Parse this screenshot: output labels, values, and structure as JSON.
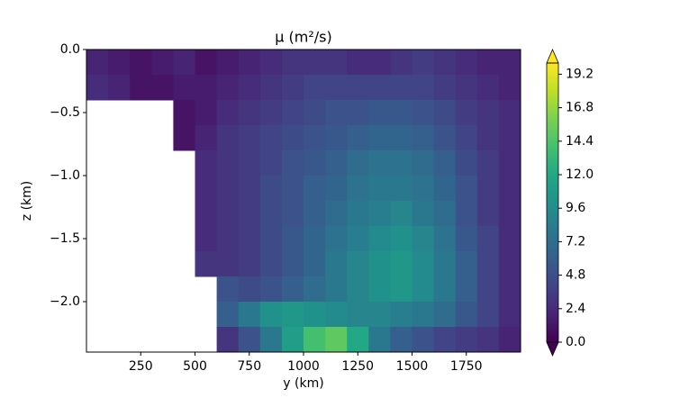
{
  "chart_data": {
    "type": "contourf",
    "title": "μ (m²/s)",
    "x_label": "y (km)",
    "y_label": "z (km)",
    "colormap": "viridis",
    "colorbar_extend": "both",
    "xlim": [
      0,
      2000
    ],
    "ylim": [
      -2.4,
      0
    ],
    "clim": [
      0,
      20
    ],
    "xticks": [
      250,
      500,
      750,
      1000,
      1250,
      1500,
      1750
    ],
    "yticks": [
      {
        "value": 0,
        "label": "0.0"
      },
      {
        "value": -0.5,
        "label": "−0.5"
      },
      {
        "value": -1,
        "label": "−1.0"
      },
      {
        "value": -1.5,
        "label": "−1.5"
      },
      {
        "value": -2,
        "label": "−2.0"
      }
    ],
    "cticks": [
      {
        "value": 0,
        "label": "0.0"
      },
      2.4,
      4.8,
      7.2,
      9.6,
      {
        "value": 12,
        "label": "12.0"
      },
      14.4,
      16.8,
      19.2
    ],
    "x": [
      50,
      150,
      250,
      350,
      450,
      550,
      650,
      750,
      850,
      950,
      1050,
      1150,
      1250,
      1350,
      1450,
      1550,
      1650,
      1750,
      1850,
      1950
    ],
    "y": [
      -0.1,
      -0.3,
      -0.5,
      -0.7,
      -0.9,
      -1.1,
      -1.3,
      -1.5,
      -1.7,
      -1.9,
      -2.1,
      -2.3
    ],
    "z": [
      [
        2,
        1.5,
        1,
        1.5,
        2,
        1,
        1.5,
        2,
        2.5,
        3,
        3,
        3,
        2.5,
        2.5,
        3,
        3.5,
        3,
        2.5,
        2,
        2
      ],
      [
        2.5,
        2,
        1,
        1,
        1.5,
        1.5,
        2,
        2.5,
        3,
        3.5,
        4,
        4,
        4,
        4,
        4,
        4,
        3.5,
        3,
        2.5,
        2
      ],
      [
        null,
        null,
        null,
        null,
        1,
        1.5,
        2.5,
        3,
        3.5,
        4,
        4.5,
        5,
        5,
        5.5,
        5.5,
        5,
        4.5,
        3.5,
        3,
        2.5
      ],
      [
        null,
        null,
        null,
        null,
        1,
        2,
        3,
        3.5,
        4,
        4.5,
        5,
        5.5,
        6,
        6.5,
        6.5,
        6,
        5,
        4,
        3,
        2.5
      ],
      [
        null,
        null,
        null,
        null,
        null,
        2.5,
        3,
        3.5,
        4,
        5,
        5.5,
        6,
        7,
        7.5,
        7.5,
        7,
        6,
        4.5,
        3.5,
        2.5
      ],
      [
        null,
        null,
        null,
        null,
        null,
        2.5,
        3,
        3.5,
        4.5,
        5,
        6,
        6.5,
        7.5,
        8,
        8,
        7.5,
        6.5,
        5,
        3.5,
        2.5
      ],
      [
        null,
        null,
        null,
        null,
        null,
        2.5,
        3,
        3.5,
        4.5,
        5,
        6,
        7,
        8,
        8.5,
        9,
        8,
        7,
        5,
        3.5,
        2.5
      ],
      [
        null,
        null,
        null,
        null,
        null,
        2.5,
        3,
        3.5,
        4.5,
        5.5,
        6.5,
        7.5,
        8.5,
        9.5,
        10,
        9,
        7.5,
        5.5,
        4,
        2.5
      ],
      [
        null,
        null,
        null,
        null,
        null,
        3,
        3,
        3.5,
        4.5,
        5.5,
        6.5,
        8,
        9,
        10,
        10.5,
        9.5,
        8,
        6,
        4,
        2.5
      ],
      [
        null,
        null,
        null,
        null,
        null,
        null,
        5,
        4.5,
        5,
        6,
        7,
        8,
        9,
        10,
        10.5,
        9.5,
        8,
        6,
        4,
        2.5
      ],
      [
        null,
        null,
        null,
        null,
        null,
        null,
        6,
        8,
        10,
        10.5,
        10,
        9.5,
        9,
        9,
        8.5,
        8,
        7,
        5.5,
        4,
        2.5
      ],
      [
        null,
        null,
        null,
        null,
        null,
        null,
        3,
        5,
        8,
        11,
        14,
        15,
        12,
        8,
        6,
        5,
        4,
        3.5,
        3,
        2
      ]
    ]
  }
}
